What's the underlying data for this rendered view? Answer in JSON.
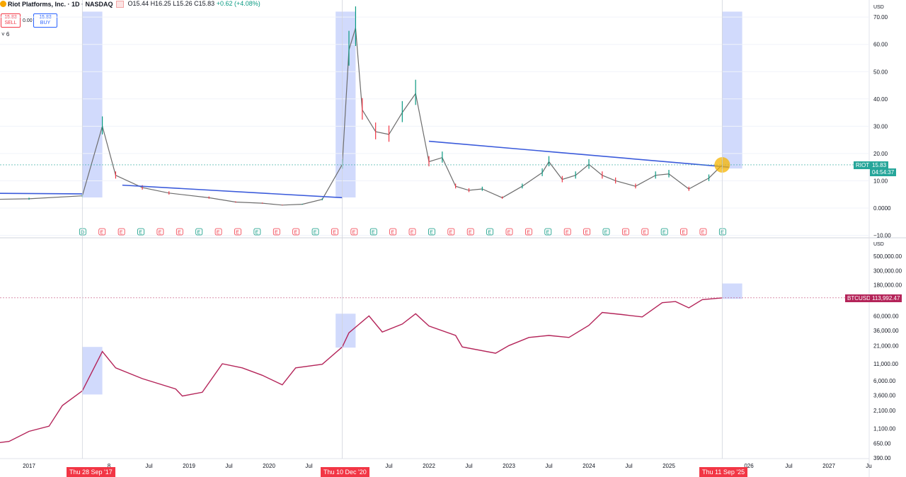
{
  "header": {
    "title": "Riot Platforms, Inc. · 1D · NASDAQ",
    "open": "O15.44",
    "high": "H16.25",
    "low": "L15.26",
    "close": "C15.83",
    "change": "+0.62 (+4.08%)",
    "sell_price": "15.83",
    "sell_label": "SELL",
    "spread": "0.00",
    "buy_price": "15.83",
    "buy_label": "BUY",
    "indicator_count": "6"
  },
  "colors": {
    "up": "#089981",
    "down": "#f23645",
    "btc": "#b42459",
    "trend": "#3b5bdb",
    "highlight": "#c9d4fb",
    "marker": "#f5b400"
  },
  "icons": [
    "riot-logo-icon",
    "market-closed-icon",
    "chevron-down-icon",
    "settings-icon"
  ],
  "chart_data": [
    {
      "type": "line",
      "symbol": "RIOT",
      "price_scale_currency": "USD",
      "ylim": [
        -10,
        72
      ],
      "yticks": [
        "70.00",
        "60.00",
        "50.00",
        "40.00",
        "30.00",
        "20.00",
        "10.00",
        "0.0000",
        "−10.00"
      ],
      "last_price": "15.83",
      "countdown": "04:54:37",
      "x": [
        "2016-03",
        "2017-01",
        "2017-09",
        "2017-12",
        "2018-02",
        "2018-06",
        "2018-10",
        "2019-04",
        "2019-08",
        "2019-12",
        "2020-03",
        "2020-06",
        "2020-09",
        "2020-12",
        "2021-01",
        "2021-02",
        "2021-03",
        "2021-05",
        "2021-07",
        "2021-09",
        "2021-11",
        "2022-01",
        "2022-03",
        "2022-05",
        "2022-07",
        "2022-09",
        "2022-12",
        "2023-03",
        "2023-06",
        "2023-07",
        "2023-09",
        "2023-11",
        "2024-01",
        "2024-03",
        "2024-05",
        "2024-08",
        "2024-11",
        "2025-01",
        "2025-04",
        "2025-07",
        "2025-09"
      ],
      "y": [
        3.0,
        3.4,
        4.5,
        30.0,
        12.0,
        7.5,
        5.5,
        3.8,
        2.2,
        1.8,
        1.1,
        1.4,
        3.2,
        16.0,
        58.0,
        66.0,
        36.0,
        28.0,
        27.0,
        35.0,
        42.0,
        17.0,
        18.5,
        8.0,
        6.5,
        7.0,
        3.8,
        8.0,
        13.0,
        17.0,
        10.5,
        12.0,
        16.0,
        12.0,
        10.0,
        8.0,
        12.0,
        12.5,
        7.0,
        11.0,
        15.83
      ],
      "trendlines": [
        {
          "from": [
            "2016-03",
            5.5
          ],
          "to": [
            "2017-09",
            5.2
          ]
        },
        {
          "from": [
            "2018-03",
            8.4
          ],
          "to": [
            "2020-12",
            3.8
          ]
        },
        {
          "from": [
            "2022-01",
            24.5
          ],
          "to": [
            "2025-10",
            15.0
          ]
        }
      ],
      "earnings_events": [
        "D",
        "E",
        "E",
        "E",
        "E",
        "E",
        "E",
        "E",
        "E",
        "E",
        "E",
        "E",
        "E",
        "E",
        "E",
        "E",
        "E",
        "E",
        "E",
        "E",
        "E",
        "E",
        "E",
        "E",
        "E",
        "E",
        "E",
        "E",
        "E",
        "E",
        "E",
        "E",
        "E",
        "E"
      ]
    },
    {
      "type": "line",
      "symbol": "BTCUSD",
      "price_scale_currency": "USD",
      "log_scale": true,
      "yticks": [
        "500,000.00",
        "300,000.00",
        "180,000.00",
        "60,000.00",
        "36,000.00",
        "21,000.00",
        "11,000.00",
        "6,000.00",
        "3,600.00",
        "2,100.00",
        "1,100.00",
        "650.00",
        "390.00"
      ],
      "last_price": "113,992.47",
      "x": [
        "2016-03",
        "2016-06",
        "2016-10",
        "2017-01",
        "2017-04",
        "2017-06",
        "2017-09",
        "2017-12",
        "2018-02",
        "2018-06",
        "2018-11",
        "2018-12",
        "2019-03",
        "2019-06",
        "2019-09",
        "2019-12",
        "2020-03",
        "2020-05",
        "2020-09",
        "2020-12",
        "2021-01",
        "2021-04",
        "2021-06",
        "2021-09",
        "2021-11",
        "2022-01",
        "2022-05",
        "2022-06",
        "2022-11",
        "2023-01",
        "2023-04",
        "2023-07",
        "2023-10",
        "2024-01",
        "2024-03",
        "2024-06",
        "2024-09",
        "2024-12",
        "2025-02",
        "2025-04",
        "2025-06",
        "2025-09"
      ],
      "y": [
        420,
        620,
        700,
        1000,
        1200,
        2500,
        4200,
        17000,
        9500,
        6500,
        4500,
        3500,
        4000,
        11000,
        9500,
        7300,
        5200,
        9500,
        10800,
        20000,
        33000,
        60000,
        34000,
        45000,
        65000,
        42000,
        30000,
        20000,
        16000,
        21000,
        28000,
        30000,
        28000,
        43000,
        68000,
        63000,
        58000,
        96000,
        100000,
        80000,
        107000,
        113992.47
      ],
      "xticks": [
        "2017",
        "8",
        "Jul",
        "2019",
        "Jul",
        "2020",
        "Jul",
        "Jul",
        "2022",
        "Jul",
        "2023",
        "Jul",
        "2024",
        "Jul",
        "2025",
        "026",
        "Jul",
        "2027",
        "Ju"
      ],
      "crosshair_labels": [
        "Thu 28 Sep '17",
        "Thu 10 Dec '20",
        "Thu 11 Sep '25"
      ]
    }
  ]
}
